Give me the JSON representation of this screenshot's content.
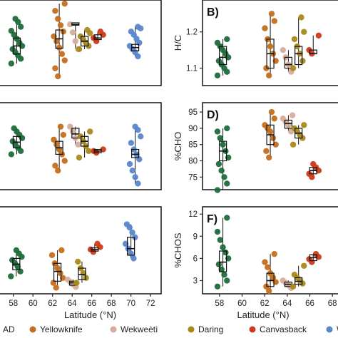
{
  "legend": {
    "entries": [
      {
        "label": "AD",
        "color": "#1e6b3a"
      },
      {
        "label": "Yellowknife",
        "color": "#c46f1c"
      },
      {
        "label": "Wekweètì",
        "color": "#d7ad9c"
      },
      {
        "label": "Daring",
        "color": "#a88a1a"
      },
      {
        "label": "Canvasback",
        "color": "#cc3a16"
      },
      {
        "label": "W",
        "color": "#5a86cc"
      }
    ]
  },
  "chart_data": [
    {
      "type": "box-strip",
      "panel_label": "",
      "xlabel": "",
      "ylabel": "",
      "xlim": [
        57,
        72
      ],
      "xticks": [],
      "yticks": [],
      "groups": [
        {
          "name": "AD",
          "x": 58.3,
          "box": [
            0.36,
            0.46,
            0.56
          ],
          "points": [
            0.24,
            0.3,
            0.34,
            0.38,
            0.42,
            0.46,
            0.5,
            0.55,
            0.6,
            0.65,
            0.7,
            0.76,
            0.8
          ]
        },
        {
          "name": "Yellowknife",
          "x": 62.5,
          "box": [
            0.43,
            0.55,
            0.66
          ],
          "points": [
            0.08,
            0.18,
            0.28,
            0.36,
            0.44,
            0.52,
            0.58,
            0.64,
            0.72,
            0.8,
            0.9,
            0.99
          ]
        },
        {
          "name": "Wekweètì",
          "x": 64.1,
          "box": [
            0.72,
            0.73,
            0.75
          ],
          "points": [
            0.42,
            0.52,
            0.63,
            0.73
          ]
        },
        {
          "name": "Daring",
          "x": 65.0,
          "box": [
            0.46,
            0.52,
            0.58
          ],
          "points": [
            0.42,
            0.46,
            0.5,
            0.54,
            0.58,
            0.62,
            0.66
          ]
        },
        {
          "name": "Canvasback",
          "x": 66.3,
          "box": [
            0.54,
            0.56,
            0.6
          ],
          "points": [
            0.52,
            0.56,
            0.6,
            0.64
          ]
        },
        {
          "name": "W",
          "x": 70.0,
          "box": [
            0.4,
            0.44,
            0.48
          ],
          "points": [
            0.33,
            0.38,
            0.42,
            0.46,
            0.5,
            0.55,
            0.6,
            0.64,
            0.68,
            0.7
          ]
        }
      ]
    },
    {
      "type": "box-strip",
      "panel_label": "B)",
      "xlabel": "",
      "ylabel": "H/C",
      "ylim": [
        1.06,
        1.28
      ],
      "yticks": [
        "1.1",
        "1.2"
      ],
      "xlim": [
        57,
        69
      ],
      "xticks": [],
      "groups": [
        {
          "name": "AD",
          "x": 58.3,
          "box": [
            1.11,
            1.13,
            1.16
          ],
          "points": [
            1.08,
            1.09,
            1.1,
            1.11,
            1.12,
            1.13,
            1.14,
            1.15,
            1.16,
            1.17,
            1.18
          ]
        },
        {
          "name": "Yellowknife",
          "x": 62.5,
          "box": [
            1.1,
            1.14,
            1.18
          ],
          "points": [
            1.08,
            1.1,
            1.12,
            1.14,
            1.16,
            1.18,
            1.21,
            1.23,
            1.25
          ]
        },
        {
          "name": "Wekweètì",
          "x": 64.1,
          "box": [
            1.1,
            1.11,
            1.13
          ],
          "points": [
            1.09,
            1.11,
            1.13,
            1.15
          ]
        },
        {
          "name": "Daring",
          "x": 65.0,
          "box": [
            1.11,
            1.14,
            1.16
          ],
          "points": [
            1.1,
            1.12,
            1.14,
            1.16,
            1.18,
            1.2,
            1.24
          ]
        },
        {
          "name": "Canvasback",
          "x": 66.3,
          "box": [
            1.14,
            1.14,
            1.15
          ],
          "points": [
            1.14,
            1.15,
            1.19
          ]
        }
      ]
    },
    {
      "type": "box-strip",
      "panel_label": "",
      "xlabel": "",
      "ylabel": "",
      "xlim": [
        57,
        72
      ],
      "xticks": [],
      "yticks": [],
      "groups": [
        {
          "name": "AD",
          "x": 58.3,
          "box": [
            0.48,
            0.55,
            0.62
          ],
          "points": [
            0.4,
            0.44,
            0.48,
            0.52,
            0.56,
            0.6,
            0.64,
            0.68,
            0.72
          ]
        },
        {
          "name": "Yellowknife",
          "x": 62.5,
          "box": [
            0.4,
            0.48,
            0.56
          ],
          "points": [
            0.2,
            0.26,
            0.32,
            0.4,
            0.46,
            0.52,
            0.58,
            0.64,
            0.74
          ]
        },
        {
          "name": "Wekweètì",
          "x": 64.1,
          "box": [
            0.6,
            0.65,
            0.72
          ],
          "points": [
            0.52,
            0.6,
            0.68,
            0.74
          ]
        },
        {
          "name": "Daring",
          "x": 65.0,
          "box": [
            0.5,
            0.56,
            0.62
          ],
          "points": [
            0.36,
            0.44,
            0.5,
            0.56,
            0.62,
            0.68
          ]
        },
        {
          "name": "Canvasback",
          "x": 66.3,
          "box": [
            0.42,
            0.44,
            0.46
          ],
          "points": [
            0.42,
            0.44,
            0.46
          ]
        },
        {
          "name": "W",
          "x": 70.0,
          "box": [
            0.36,
            0.4,
            0.46
          ],
          "points": [
            0.04,
            0.12,
            0.2,
            0.28,
            0.34,
            0.4,
            0.46,
            0.54,
            0.62,
            0.7,
            0.74
          ]
        }
      ]
    },
    {
      "type": "box-strip",
      "panel_label": "D)",
      "xlabel": "",
      "ylabel": "%CHO",
      "ylim": [
        72,
        97
      ],
      "yticks": [
        "75",
        "80",
        "85",
        "90",
        "95"
      ],
      "xlim": [
        57,
        69
      ],
      "xticks": [],
      "groups": [
        {
          "name": "AD",
          "x": 58.3,
          "box": [
            80,
            83,
            86
          ],
          "points": [
            71,
            73,
            75,
            77,
            79,
            81,
            83,
            85,
            87,
            89,
            90
          ]
        },
        {
          "name": "Yellowknife",
          "x": 62.5,
          "box": [
            85,
            88,
            91
          ],
          "points": [
            81,
            83,
            85,
            87,
            89,
            90,
            91,
            93,
            95
          ]
        },
        {
          "name": "Wekweètì",
          "x": 64.1,
          "box": [
            90,
            91.5,
            92.5
          ],
          "points": [
            89,
            91,
            92,
            93,
            94
          ]
        },
        {
          "name": "Daring",
          "x": 65.0,
          "box": [
            87,
            88.5,
            90
          ],
          "points": [
            85,
            87,
            88,
            89,
            90,
            91
          ]
        },
        {
          "name": "Canvasback",
          "x": 66.3,
          "box": [
            76,
            77,
            78
          ],
          "points": [
            75,
            76,
            77,
            78,
            79
          ]
        }
      ]
    },
    {
      "type": "box-strip",
      "panel_label": "",
      "xlabel": "Latitude (°N)",
      "ylabel": "",
      "xlim": [
        57,
        72.5
      ],
      "xticks": [
        "58",
        "60",
        "62",
        "64",
        "66",
        "68",
        "70",
        "72"
      ],
      "yticks": [],
      "groups": [
        {
          "name": "AD",
          "x": 58.3,
          "box": [
            0.26,
            0.33,
            0.4
          ],
          "points": [
            0.18,
            0.24,
            0.3,
            0.34,
            0.38,
            0.42,
            0.46,
            0.5
          ]
        },
        {
          "name": "Yellowknife",
          "x": 62.5,
          "box": [
            0.12,
            0.24,
            0.34
          ],
          "points": [
            0.04,
            0.1,
            0.16,
            0.22,
            0.28,
            0.34,
            0.44,
            0.5
          ]
        },
        {
          "name": "Wekweètì",
          "x": 64.1,
          "box": [
            0.07,
            0.1,
            0.12
          ],
          "points": [
            0.05,
            0.08,
            0.11,
            0.14
          ]
        },
        {
          "name": "Daring",
          "x": 65.0,
          "box": [
            0.14,
            0.2,
            0.28
          ],
          "points": [
            0.1,
            0.16,
            0.22,
            0.28,
            0.36
          ]
        },
        {
          "name": "Canvasback",
          "x": 66.3,
          "box": [
            0.49,
            0.51,
            0.53
          ],
          "points": [
            0.48,
            0.51,
            0.54,
            0.58
          ]
        },
        {
          "name": "W",
          "x": 70.0,
          "box": [
            0.44,
            0.52,
            0.66
          ],
          "points": [
            0.4,
            0.46,
            0.52,
            0.58,
            0.66,
            0.72,
            0.78,
            0.82
          ]
        }
      ]
    },
    {
      "type": "box-strip",
      "panel_label": "F)",
      "xlabel": "Latitude (°N)",
      "ylabel": "%CHOS",
      "ylim": [
        1.6,
        12.6
      ],
      "yticks": [
        "3",
        "6",
        "9",
        "12"
      ],
      "xlim": [
        57,
        69
      ],
      "xticks": [
        "58",
        "60",
        "62",
        "64",
        "66",
        "68"
      ],
      "groups": [
        {
          "name": "AD",
          "x": 58.3,
          "box": [
            4.2,
            5.5,
            7.0
          ],
          "points": [
            2.2,
            3.0,
            3.8,
            4.5,
            5.2,
            6.0,
            6.8,
            7.5,
            8.5,
            9.6,
            11.5
          ]
        },
        {
          "name": "Yellowknife",
          "x": 62.5,
          "box": [
            2.2,
            3.0,
            4.0
          ],
          "points": [
            1.6,
            2.2,
            2.8,
            3.4,
            4.0,
            4.8,
            5.5,
            6.6
          ]
        },
        {
          "name": "Wekweètì",
          "x": 64.1,
          "box": [
            2.2,
            2.5,
            2.8
          ],
          "points": [
            2.0,
            2.4,
            2.7,
            3.0
          ]
        },
        {
          "name": "Daring",
          "x": 65.0,
          "box": [
            2.5,
            2.9,
            3.4
          ],
          "points": [
            2.2,
            2.6,
            3.0,
            3.4,
            3.8,
            5.0
          ]
        },
        {
          "name": "Canvasback",
          "x": 66.3,
          "box": [
            5.7,
            6.1,
            6.5
          ],
          "points": [
            5.5,
            5.9,
            6.2,
            6.6
          ]
        }
      ]
    }
  ]
}
